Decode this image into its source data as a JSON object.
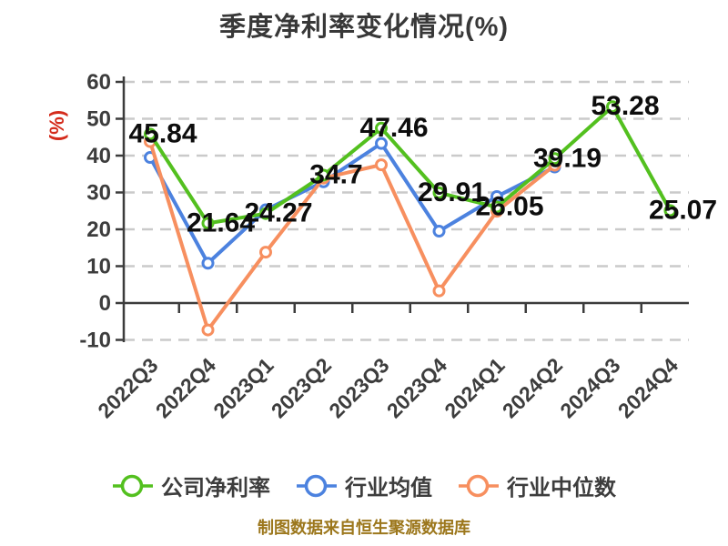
{
  "title": "季度净利率变化情况(%)",
  "y_axis_label": "(%)",
  "source_note": "制图数据来自恒生聚源数据库",
  "colors": {
    "company": "#53C01F",
    "industry_avg": "#4C82DF",
    "industry_median": "#F78F5F",
    "title": "#383838",
    "axis": "#3C3C3C",
    "tick_label": "#3D3D3D",
    "grid": "#CACACA",
    "data_label": "#0D0D0D",
    "y_axis_label_color": "#D42B1B",
    "legend_text": "#3D3D3D",
    "source": "#9C771C"
  },
  "chart_data": {
    "type": "line",
    "title": "季度净利率变化情况(%)",
    "ylabel": "(%)",
    "ylim": [
      -10,
      60
    ],
    "y_ticks": [
      60,
      50,
      40,
      30,
      20,
      10,
      0,
      -10
    ],
    "grid": "horizontal dashed, x-axis solid at 0",
    "legend_position": "bottom",
    "categories": [
      "2022Q3",
      "2022Q4",
      "2023Q1",
      "2023Q2",
      "2023Q3",
      "2023Q4",
      "2024Q1",
      "2024Q2",
      "2024Q3",
      "2024Q4"
    ],
    "series": [
      {
        "name": "公司净利率",
        "color_key": "company",
        "values": [
          45.84,
          21.64,
          24.27,
          34.7,
          47.46,
          29.91,
          26.05,
          39.19,
          53.28,
          25.07
        ],
        "point_labels": [
          "45.84",
          "21.64",
          "24.27",
          "34.7",
          "47.46",
          "29.91",
          "26.05",
          "39.19",
          "53.28",
          "25.07"
        ]
      },
      {
        "name": "行业均值",
        "color_key": "industry_avg",
        "values": [
          39.5,
          10.8,
          25.3,
          32.9,
          43.3,
          19.5,
          28.9,
          36.9,
          null,
          null
        ],
        "point_labels": null
      },
      {
        "name": "行业中位数",
        "color_key": "industry_median",
        "values": [
          43.8,
          -7.3,
          13.8,
          33.9,
          37.5,
          3.3,
          24.9,
          37.4,
          null,
          null
        ],
        "point_labels": null
      }
    ]
  }
}
